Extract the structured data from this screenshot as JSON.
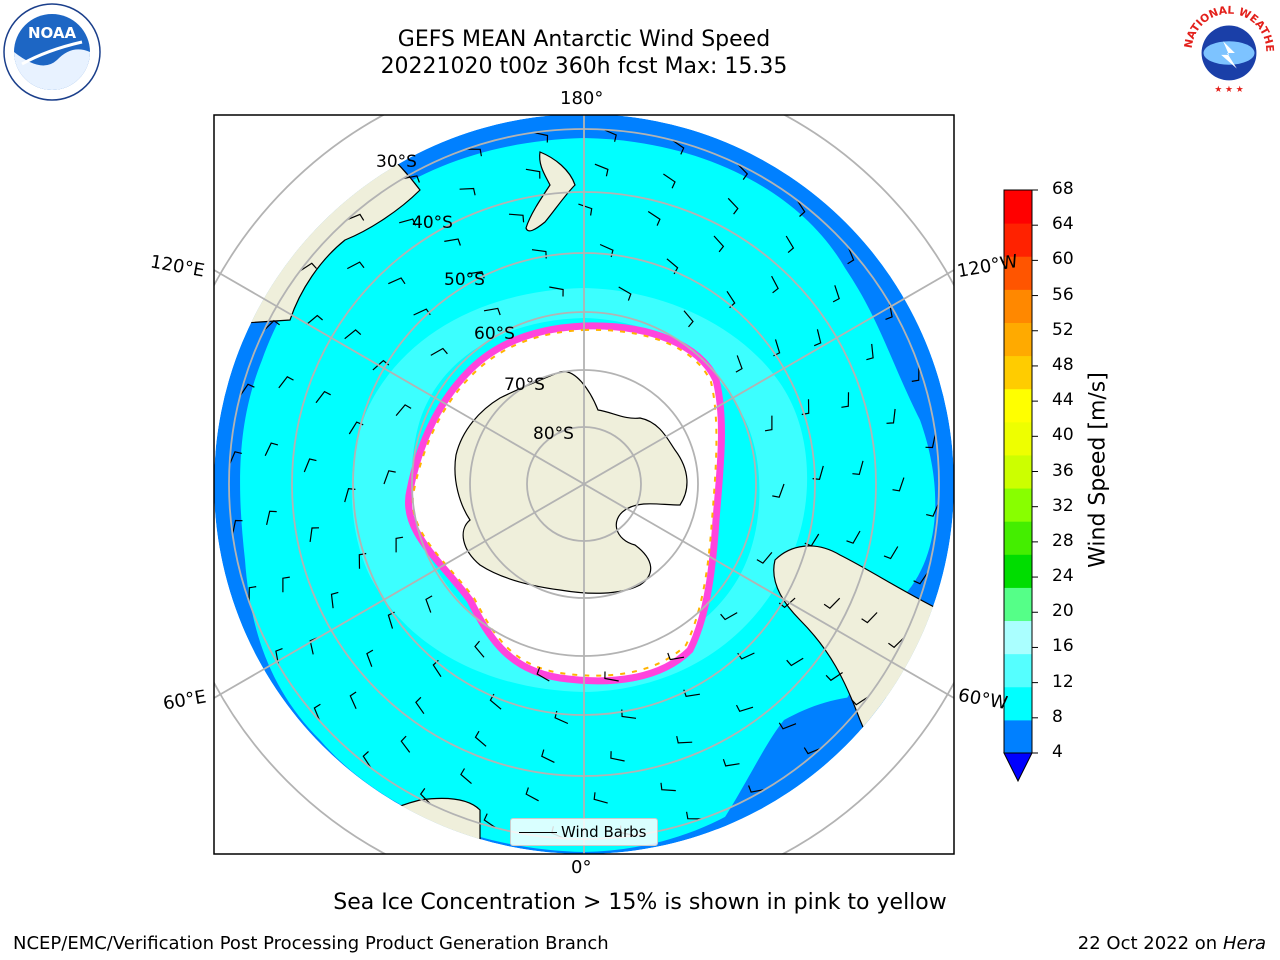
{
  "header": {
    "title_line1": "GEFS MEAN Antarctic Wind Speed",
    "title_line2": "20221020 t00z 360h fcst   Max: 15.35"
  },
  "logos": {
    "noaa": {
      "text": "NOAA",
      "ring_text": "NATIONAL OCEANIC AND ATMOSPHERIC ADMINISTRATION · U.S. DEPARTMENT OF COMMERCE"
    },
    "nws": {
      "ring_text": "NATIONAL WEATHER SERVICE"
    }
  },
  "map": {
    "longitude_labels": {
      "top": "180°",
      "bottom": "0°",
      "left_upper": "120°E",
      "right_upper": "120°W",
      "left_lower": "60°E",
      "right_lower": "60°W"
    },
    "latitude_labels": [
      "30°S",
      "40°S",
      "50°S",
      "60°S",
      "70°S",
      "80°S"
    ],
    "legend_label": "Wind Barbs",
    "colors": {
      "land": "#efefdb",
      "open_ocean": "#0080ff",
      "mid_ocean": "#00ffff",
      "storm_band": "#55ffff",
      "ice_edge": "#ff44dd",
      "ice_edge_yellow": "#ffb300",
      "grid": "#b3b3b3"
    }
  },
  "colorbar": {
    "label": "Wind Speed [m/s]",
    "ticks": [
      "68",
      "64",
      "60",
      "56",
      "52",
      "48",
      "44",
      "40",
      "36",
      "32",
      "28",
      "24",
      "20",
      "16",
      "12",
      "8",
      "4"
    ],
    "colors": [
      "#0000ff",
      "#0080ff",
      "#00ffff",
      "#55ffff",
      "#aaffff",
      "#55ff88",
      "#00dd00",
      "#44ee00",
      "#88ff00",
      "#ccff00",
      "#eeff00",
      "#ffff00",
      "#ffcc00",
      "#ffaa00",
      "#ff8800",
      "#ff5500",
      "#ff2200",
      "#ff0000"
    ]
  },
  "subtitle": "Sea Ice Concentration > 15% is shown in pink to yellow",
  "footer": {
    "left": "NCEP/EMC/Verification Post Processing Product Generation Branch",
    "date": "22 Oct 2022 on ",
    "machine": "Hera"
  }
}
